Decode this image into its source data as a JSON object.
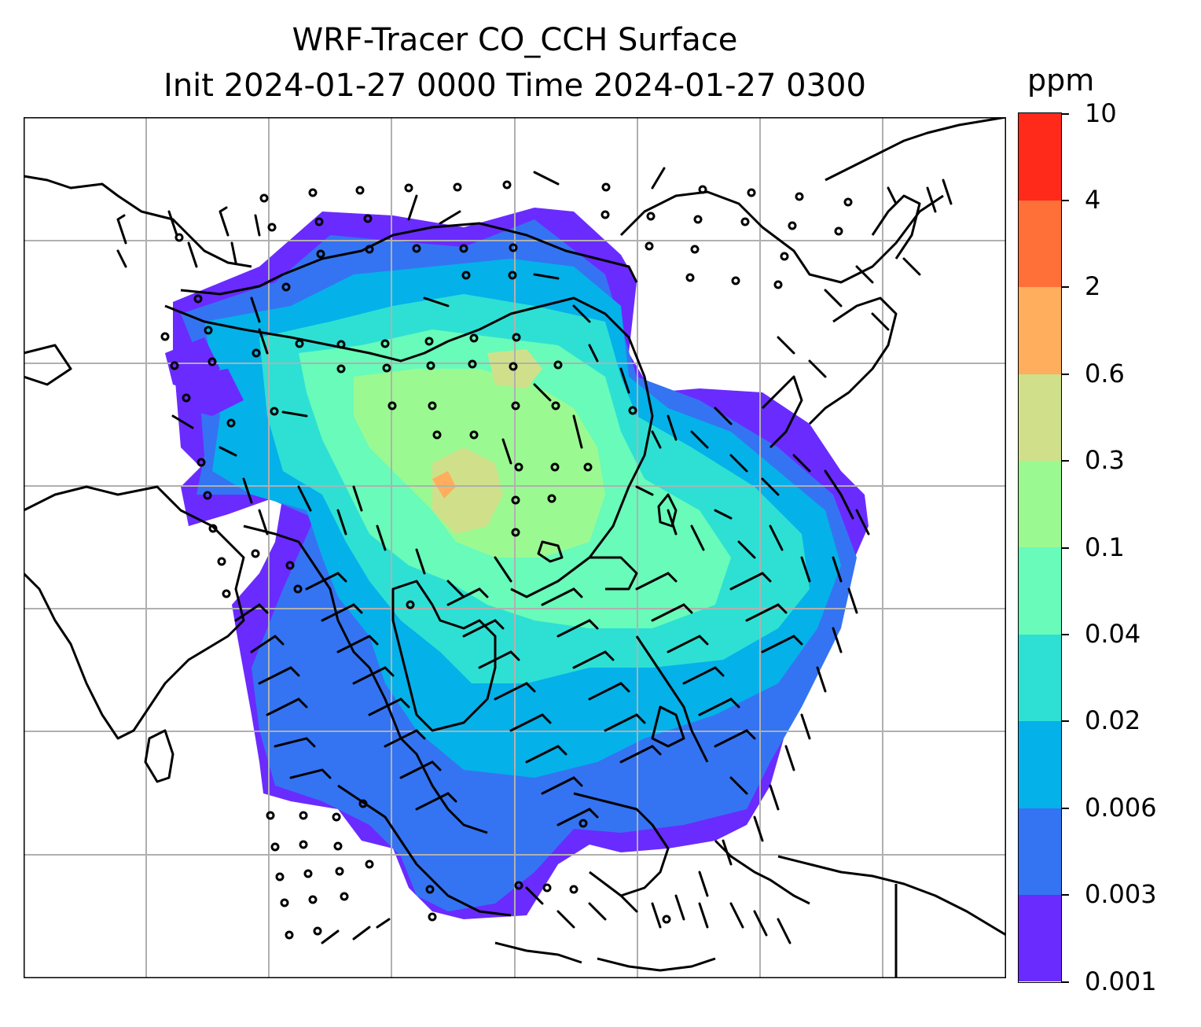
{
  "title_line1": "WRF-Tracer CO_CCH Surface",
  "title_line2": "Init 2024-01-27 0000 Time 2024-01-27 0300",
  "colorbar": {
    "unit": "ppm",
    "levels": [
      "0.001",
      "0.003",
      "0.006",
      "0.02",
      "0.04",
      "0.1",
      "0.3",
      "0.6",
      "2",
      "4",
      "10"
    ],
    "colors": [
      "#6a2bff",
      "#3474f2",
      "#05b1e9",
      "#2ee0d4",
      "#68fbba",
      "#9bf992",
      "#d0e08a",
      "#feae5c",
      "#fe7038",
      "#ff2a1a"
    ]
  },
  "map": {
    "gridlines": true,
    "field_colors": {
      "lowest": "#6a2bff",
      "low": "#3474f2",
      "mid": "#05b1e9",
      "midhigh": "#2ee0d4",
      "high": "#68fbba",
      "higher": "#9bf992",
      "peak": "#d0e08a",
      "max": "#feae5c"
    }
  }
}
